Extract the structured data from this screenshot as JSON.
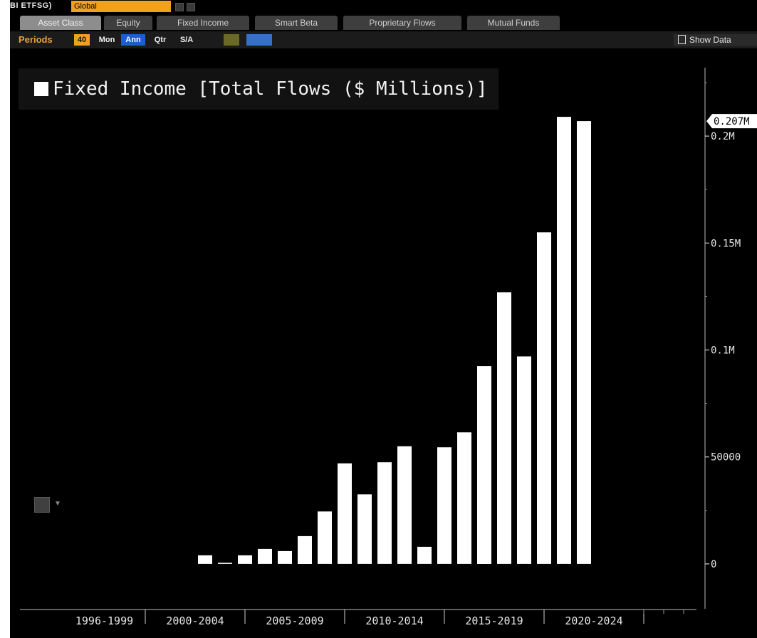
{
  "header": {
    "ticker_label": "BI ETFSG)",
    "ticker_value": "Global"
  },
  "tabs": [
    {
      "label": "Asset Class",
      "active": true
    },
    {
      "label": "Equity",
      "active": false
    },
    {
      "label": "Fixed Income",
      "active": false
    },
    {
      "label": "Smart Beta",
      "active": false
    },
    {
      "label": "Proprietary Flows",
      "active": false
    },
    {
      "label": "Mutual Funds",
      "active": false
    }
  ],
  "periods": {
    "label": "Periods",
    "count": "40",
    "buttons": [
      "Mon",
      "Ann",
      "Qtr",
      "S/A"
    ],
    "selected": "Ann"
  },
  "show_data": "Show Data",
  "colors": {
    "background": "#000000",
    "bar": "#ffffff",
    "accent_orange": "#f0a21e",
    "accent_blue": "#1a5fd0"
  },
  "chart_data": {
    "type": "bar",
    "title": "Fixed Income [Total Flows ($ Millions)]",
    "xlabel": "",
    "ylabel": "",
    "x_group_labels": [
      "1996-1999",
      "2000-2004",
      "2005-2009",
      "2010-2014",
      "2015-2019",
      "2020-2024"
    ],
    "y_ticks": [
      0,
      50000,
      100000,
      150000,
      200000
    ],
    "y_tick_labels": [
      "0",
      "50000",
      "0.1M",
      "0.15M",
      "0.2M"
    ],
    "last_value_label": "0.207M",
    "ylim": [
      -21000,
      232000
    ],
    "grid": false,
    "values": [
      4000,
      500,
      4000,
      7000,
      6000,
      13000,
      24500,
      47000,
      32500,
      47500,
      55000,
      8000,
      54500,
      61500,
      92500,
      127000,
      97000,
      155000,
      209000,
      207000
    ]
  }
}
